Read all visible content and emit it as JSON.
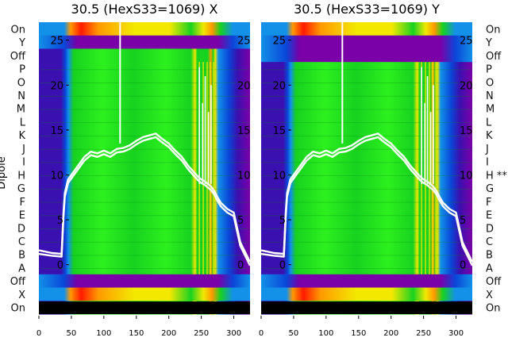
{
  "chart_data": [
    {
      "type": "heatmap",
      "title": "30.5 (HexS33=1069) X",
      "ylabel": "Dipole",
      "x_ticks": [
        0,
        50,
        100,
        150,
        200,
        250,
        300
      ],
      "xlim": [
        0,
        325
      ],
      "y_rows": [
        "On",
        "Y",
        "Off",
        "P",
        "O",
        "N",
        "M",
        "L",
        "K",
        "J",
        "I",
        "H",
        "G",
        "F",
        "E",
        "D",
        "C",
        "B",
        "A",
        "Off",
        "X",
        "On"
      ],
      "overlay_ticks": [
        25,
        20,
        15,
        10,
        5,
        0
      ],
      "overlay_ylim": [
        -5.5,
        27.0
      ],
      "overlay_series": [
        {
          "x": [
            0,
            20,
            35,
            38,
            40,
            45,
            50,
            60,
            70,
            80,
            90,
            100,
            110,
            120,
            130,
            140,
            150,
            160,
            170,
            180,
            190,
            200,
            210,
            220,
            230,
            240,
            245,
            250,
            255,
            260,
            265,
            270,
            275,
            280,
            290,
            300,
            310,
            325
          ],
          "y": [
            1.6,
            1.3,
            1.2,
            6.0,
            8.0,
            9.5,
            10.0,
            11.0,
            12.0,
            12.6,
            12.4,
            12.7,
            12.4,
            12.9,
            13.0,
            13.3,
            13.8,
            14.2,
            14.4,
            14.6,
            14.0,
            13.5,
            12.7,
            12.0,
            11.0,
            10.2,
            9.8,
            9.5,
            9.3,
            9.0,
            8.7,
            8.2,
            7.5,
            6.9,
            6.2,
            5.8,
            2.5,
            0.3
          ]
        },
        {
          "x": [
            0,
            20,
            35,
            38,
            40,
            45,
            50,
            60,
            70,
            80,
            90,
            100,
            110,
            120,
            130,
            140,
            150,
            160,
            170,
            180,
            190,
            200,
            210,
            220,
            230,
            240,
            245,
            250,
            255,
            260,
            265,
            270,
            275,
            280,
            290,
            300,
            310,
            325
          ],
          "y": [
            1.2,
            1.0,
            0.9,
            5.5,
            7.6,
            9.1,
            9.6,
            10.6,
            11.6,
            12.2,
            12.0,
            12.3,
            12.0,
            12.5,
            12.6,
            12.9,
            13.4,
            13.8,
            14.0,
            14.2,
            13.6,
            13.1,
            12.3,
            11.6,
            10.6,
            9.8,
            9.4,
            9.1,
            8.9,
            8.6,
            8.3,
            7.8,
            7.1,
            6.5,
            5.8,
            5.4,
            2.1,
            -0.1
          ]
        }
      ]
    },
    {
      "type": "heatmap",
      "title": "30.5 (HexS33=1069) Y",
      "x_ticks": [
        0,
        50,
        100,
        150,
        200,
        250,
        300
      ],
      "xlim": [
        0,
        325
      ],
      "y_rows": [
        "On",
        "Y",
        "Off",
        "P",
        "O",
        "N",
        "M",
        "L",
        "K",
        "J",
        "I",
        "H **",
        "G",
        "F",
        "E",
        "D",
        "C",
        "B",
        "A",
        "Off",
        "X",
        "On"
      ],
      "overlay_ticks": [
        25,
        20,
        15,
        10,
        5,
        0
      ],
      "overlay_ylim": [
        -5.5,
        27.0
      ],
      "overlay_series": [
        {
          "x": [
            0,
            20,
            35,
            38,
            40,
            45,
            50,
            60,
            70,
            80,
            90,
            100,
            110,
            120,
            130,
            140,
            150,
            160,
            170,
            180,
            190,
            200,
            210,
            220,
            230,
            240,
            245,
            250,
            255,
            260,
            265,
            270,
            275,
            280,
            290,
            300,
            310,
            325
          ],
          "y": [
            1.6,
            1.3,
            1.2,
            6.0,
            8.0,
            9.5,
            10.0,
            11.0,
            12.0,
            12.6,
            12.4,
            12.7,
            12.4,
            12.9,
            13.0,
            13.3,
            13.8,
            14.2,
            14.4,
            14.6,
            14.0,
            13.5,
            12.7,
            12.0,
            11.0,
            10.2,
            9.8,
            9.5,
            9.3,
            9.0,
            8.7,
            8.2,
            7.5,
            6.9,
            6.2,
            5.8,
            2.5,
            0.3
          ]
        },
        {
          "x": [
            0,
            20,
            35,
            38,
            40,
            45,
            50,
            60,
            70,
            80,
            90,
            100,
            110,
            120,
            130,
            140,
            150,
            160,
            170,
            180,
            190,
            200,
            210,
            220,
            230,
            240,
            245,
            250,
            255,
            260,
            265,
            270,
            275,
            280,
            290,
            300,
            310,
            325
          ],
          "y": [
            1.2,
            1.0,
            0.9,
            5.5,
            7.6,
            9.1,
            9.6,
            10.6,
            11.6,
            12.2,
            12.0,
            12.3,
            12.0,
            12.5,
            12.6,
            12.9,
            13.4,
            13.8,
            14.0,
            14.2,
            13.6,
            13.1,
            12.3,
            11.6,
            10.6,
            9.8,
            9.4,
            9.1,
            8.9,
            8.6,
            8.3,
            7.8,
            7.1,
            6.5,
            5.8,
            5.4,
            2.1,
            -0.1
          ]
        }
      ]
    }
  ],
  "colors": {
    "purple": "#7a00a8",
    "indigo": "#3a10b0",
    "blue": "#0a46d8",
    "azure": "#1390e8",
    "green": "#17d21f",
    "bright_green": "#2cf01e",
    "yellow": "#f2e800",
    "orange": "#ff9800",
    "red": "#ff1a00",
    "overlay": "#ffffff",
    "text": "#111111"
  }
}
